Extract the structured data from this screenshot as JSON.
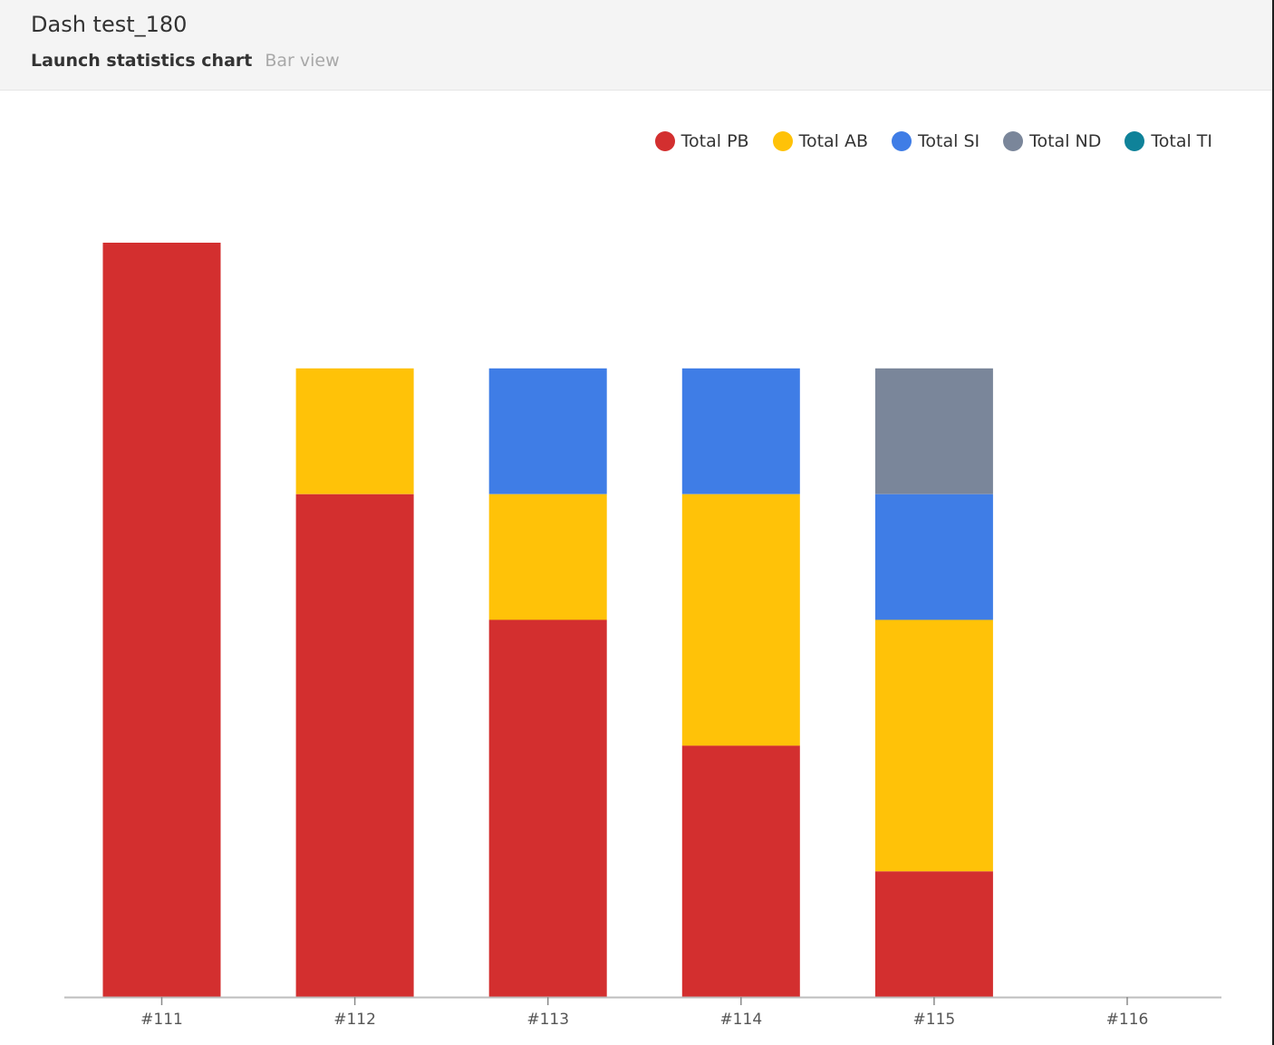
{
  "header": {
    "title": "Dash test_180",
    "widget_type": "Launch statistics chart",
    "view": "Bar view"
  },
  "legend": {
    "items": [
      {
        "label": "Total PB",
        "color": "#d32f2f"
      },
      {
        "label": "Total AB",
        "color": "#ffc208"
      },
      {
        "label": "Total SI",
        "color": "#3f7de6"
      },
      {
        "label": "Total ND",
        "color": "#7a869a"
      },
      {
        "label": "Total TI",
        "color": "#0f8299"
      }
    ]
  },
  "chart_data": {
    "type": "bar",
    "stacked": true,
    "categories": [
      "#111",
      "#112",
      "#113",
      "#114",
      "#115",
      "#116"
    ],
    "series": [
      {
        "name": "Total PB",
        "color": "#d32f2f",
        "values": [
          6,
          4,
          3,
          2,
          1,
          0
        ]
      },
      {
        "name": "Total AB",
        "color": "#ffc208",
        "values": [
          0,
          1,
          1,
          2,
          2,
          0
        ]
      },
      {
        "name": "Total SI",
        "color": "#3f7de6",
        "values": [
          0,
          0,
          1,
          1,
          1,
          0
        ]
      },
      {
        "name": "Total ND",
        "color": "#7a869a",
        "values": [
          0,
          0,
          0,
          0,
          1,
          0
        ]
      },
      {
        "name": "Total TI",
        "color": "#0f8299",
        "values": [
          0,
          0,
          0,
          0,
          0,
          0
        ]
      }
    ],
    "ylim": [
      0,
      6
    ],
    "grid": false,
    "legend_position": "top-right"
  }
}
